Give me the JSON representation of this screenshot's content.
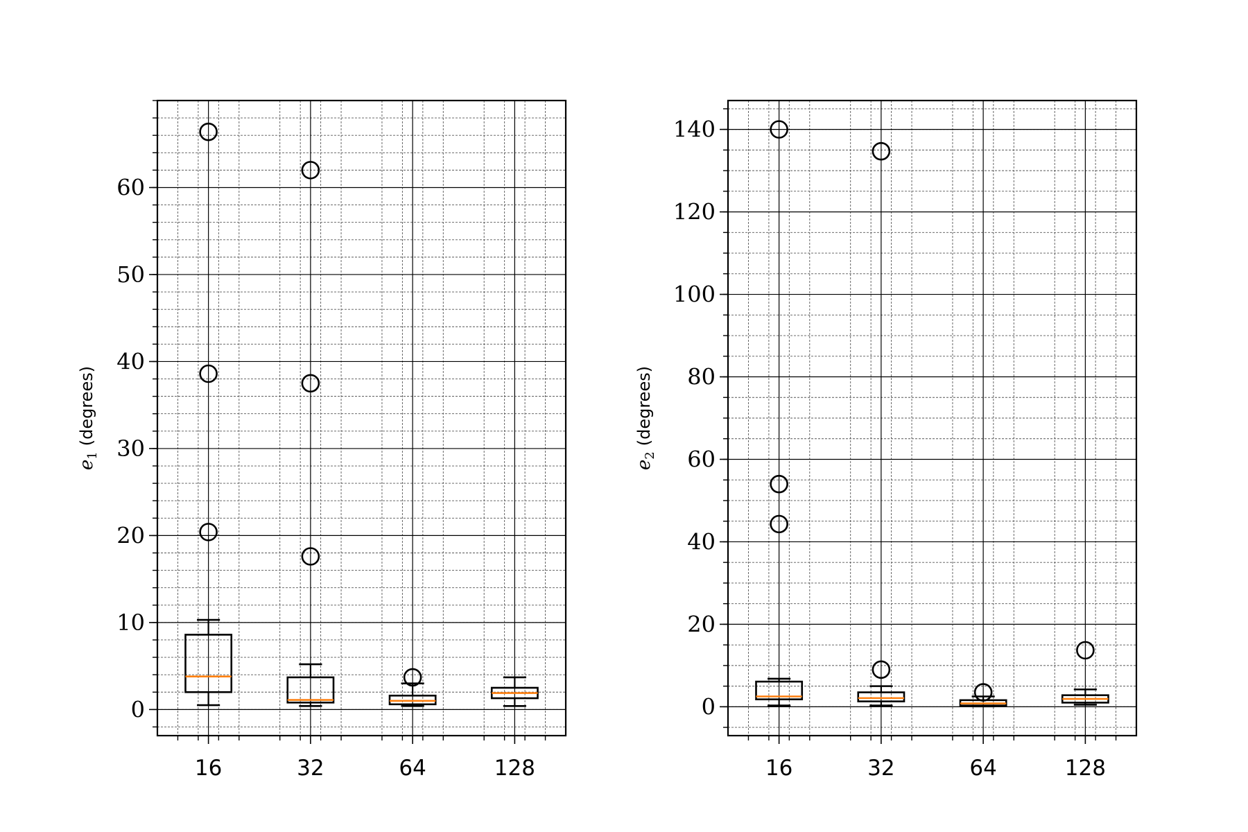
{
  "chart_data": [
    {
      "type": "box",
      "categories": [
        "16",
        "32",
        "64",
        "128"
      ],
      "ylabel_symbol": "e",
      "ylabel_subscript": "1",
      "ylabel_unit": "(degrees)",
      "ylim": [
        -3,
        70
      ],
      "yticks": [
        0,
        10,
        20,
        30,
        40,
        50,
        60
      ],
      "y_minor_step": 2,
      "grid": "major and minor",
      "boxes": [
        {
          "category": "16",
          "whisker_low": 0.5,
          "q1": 2.0,
          "median": 3.8,
          "q3": 8.6,
          "whisker_high": 10.3,
          "outliers": [
            20.4,
            38.6,
            66.4
          ]
        },
        {
          "category": "32",
          "whisker_low": 0.4,
          "q1": 0.8,
          "median": 1.1,
          "q3": 3.7,
          "whisker_high": 5.2,
          "outliers": [
            17.6,
            37.5,
            62.0
          ]
        },
        {
          "category": "64",
          "whisker_low": 0.4,
          "q1": 0.6,
          "median": 1.0,
          "q3": 1.6,
          "whisker_high": 3.0,
          "outliers": [
            3.7
          ]
        },
        {
          "category": "128",
          "whisker_low": 0.4,
          "q1": 1.3,
          "median": 1.9,
          "q3": 2.5,
          "whisker_high": 3.7,
          "outliers": []
        }
      ]
    },
    {
      "type": "box",
      "categories": [
        "16",
        "32",
        "64",
        "128"
      ],
      "ylabel_symbol": "e",
      "ylabel_subscript": "2",
      "ylabel_unit": "(degrees)",
      "ylim": [
        -7,
        147
      ],
      "yticks": [
        0,
        20,
        40,
        60,
        80,
        100,
        120,
        140
      ],
      "y_minor_step": 5,
      "grid": "major and minor",
      "boxes": [
        {
          "category": "16",
          "whisker_low": 0.3,
          "q1": 1.8,
          "median": 2.5,
          "q3": 6.1,
          "whisker_high": 6.8,
          "outliers": [
            44.3,
            54.0,
            140.0
          ]
        },
        {
          "category": "32",
          "whisker_low": 0.3,
          "q1": 1.3,
          "median": 2.1,
          "q3": 3.5,
          "whisker_high": 5.0,
          "outliers": [
            9.0,
            134.7
          ]
        },
        {
          "category": "64",
          "whisker_low": 0.1,
          "q1": 0.3,
          "median": 0.8,
          "q3": 1.6,
          "whisker_high": 2.5,
          "outliers": [
            3.5
          ]
        },
        {
          "category": "128",
          "whisker_low": 0.5,
          "q1": 1.0,
          "median": 1.9,
          "q3": 2.8,
          "whisker_high": 4.2,
          "outliers": [
            13.7
          ]
        }
      ]
    }
  ],
  "colors": {
    "box": "#000000",
    "median": "#ff7f0e",
    "grid_major": "#000000",
    "grid_minor": "#555555"
  }
}
